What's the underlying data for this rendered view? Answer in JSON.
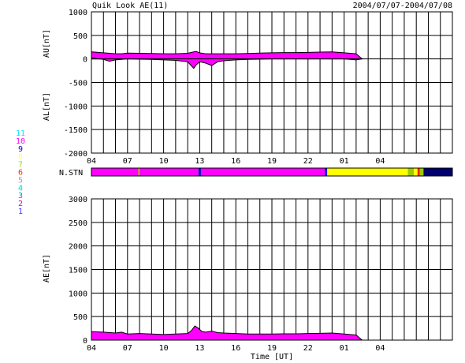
{
  "header": {
    "title": "Quik Look AE(11)",
    "date_range": "2004/07/07-2004/07/08"
  },
  "station_strip_label": "N.STN",
  "station_legend": [
    {
      "label": "11",
      "color": "#00e5ff"
    },
    {
      "label": "10",
      "color": "#ff00ff"
    },
    {
      "label": "9",
      "color": "#0000cc"
    },
    {
      "label": "8",
      "color": "#ffff66"
    },
    {
      "label": "7",
      "color": "#99dd00"
    },
    {
      "label": "6",
      "color": "#ff2200"
    },
    {
      "label": "5",
      "color": "#a0a0a0"
    },
    {
      "label": "4",
      "color": "#00cccc"
    },
    {
      "label": "3",
      "color": "#009999"
    },
    {
      "label": "2",
      "color": "#cc00cc"
    },
    {
      "label": "1",
      "color": "#3333ff"
    }
  ],
  "colors": {
    "au_al_fill": "#ff00ff",
    "stn_10": "#ff00ff",
    "stn_9": "#0000cc",
    "stn_8": "#ffff00",
    "stn_7": "#99cc00",
    "stn_6": "#ff2200",
    "stn_1": "#00006e",
    "grid": "#000000"
  },
  "chart_data": [
    {
      "type": "area",
      "panel": "AU/AL",
      "xlabel": "",
      "ylabel_upper": "AU[nT]",
      "ylabel_lower": "AL[nT]",
      "ylim": [
        -2000,
        1000
      ],
      "yticks": [
        1000,
        500,
        0,
        -500,
        -1000,
        -1500,
        -2000
      ],
      "x_ticks": [
        "04",
        "07",
        "10",
        "13",
        "16",
        "19",
        "22",
        "01",
        "04"
      ],
      "x_unit": "hours UT from 04 UT on 2004/07/07",
      "grid": true,
      "series": [
        {
          "x": [
            0,
            1,
            2,
            2.5,
            3,
            4,
            5,
            6,
            7,
            8,
            8.5,
            8.7,
            9,
            9.2,
            9.5,
            10,
            11,
            12,
            13,
            14,
            15,
            16,
            17,
            18,
            19,
            20,
            21,
            22,
            22.5
          ],
          "values": [
            150,
            130,
            110,
            110,
            125,
            120,
            115,
            110,
            110,
            120,
            150,
            160,
            130,
            120,
            110,
            110,
            110,
            110,
            115,
            125,
            130,
            135,
            135,
            140,
            145,
            150,
            130,
            110,
            0
          ]
        },
        {
          "x": [
            0,
            1,
            1.5,
            2,
            2.5,
            3,
            4,
            5,
            6,
            7,
            8,
            8.5,
            8.7,
            9,
            9.5,
            10,
            10.5,
            11,
            12,
            13,
            14,
            15,
            16,
            17,
            18,
            19,
            20,
            21,
            22,
            22.5
          ],
          "values": [
            20,
            -10,
            -50,
            -20,
            -10,
            0,
            -5,
            -10,
            -20,
            -30,
            -60,
            -200,
            -130,
            -60,
            -90,
            -140,
            -60,
            -40,
            -20,
            -10,
            -5,
            0,
            0,
            0,
            0,
            0,
            0,
            0,
            -20,
            0
          ]
        }
      ]
    },
    {
      "type": "bar",
      "panel": "N.STN",
      "segments": [
        {
          "from": 0,
          "to": 3.9,
          "station": 10
        },
        {
          "from": 3.9,
          "to": 4.0,
          "station": 7
        },
        {
          "from": 4.0,
          "to": 8.9,
          "station": 10
        },
        {
          "from": 8.9,
          "to": 9.1,
          "station": 9
        },
        {
          "from": 9.1,
          "to": 19.4,
          "station": 10
        },
        {
          "from": 19.4,
          "to": 19.6,
          "station": 9
        },
        {
          "from": 19.6,
          "to": 26.3,
          "station": 8
        },
        {
          "from": 26.3,
          "to": 26.8,
          "station": 7
        },
        {
          "from": 26.8,
          "to": 27.1,
          "station": 8
        },
        {
          "from": 27.1,
          "to": 27.3,
          "station": 6
        },
        {
          "from": 27.3,
          "to": 27.6,
          "station": 7
        },
        {
          "from": 27.6,
          "to": 30,
          "station": 1
        }
      ]
    },
    {
      "type": "area",
      "panel": "AE",
      "xlabel": "Time [UT]",
      "ylabel": "AE[nT]",
      "ylim": [
        0,
        3000
      ],
      "yticks": [
        3000,
        2500,
        2000,
        1500,
        1000,
        500,
        0
      ],
      "x_ticks": [
        "04",
        "07",
        "10",
        "13",
        "16",
        "19",
        "22",
        "01",
        "04"
      ],
      "x_unit": "hours UT from 04 UT on 2004/07/07",
      "grid": true,
      "series": [
        {
          "x": [
            0,
            1,
            2,
            2.5,
            3,
            4,
            5,
            6,
            7,
            8,
            8.3,
            8.6,
            8.9,
            9.2,
            9.5,
            10,
            10.5,
            11,
            12,
            13,
            14,
            15,
            16,
            17,
            18,
            19,
            20,
            21,
            22,
            22.5
          ],
          "values": [
            180,
            170,
            150,
            170,
            130,
            140,
            130,
            120,
            130,
            140,
            200,
            300,
            250,
            180,
            170,
            190,
            160,
            150,
            140,
            130,
            130,
            130,
            135,
            135,
            140,
            145,
            150,
            130,
            110,
            0
          ]
        }
      ]
    }
  ]
}
